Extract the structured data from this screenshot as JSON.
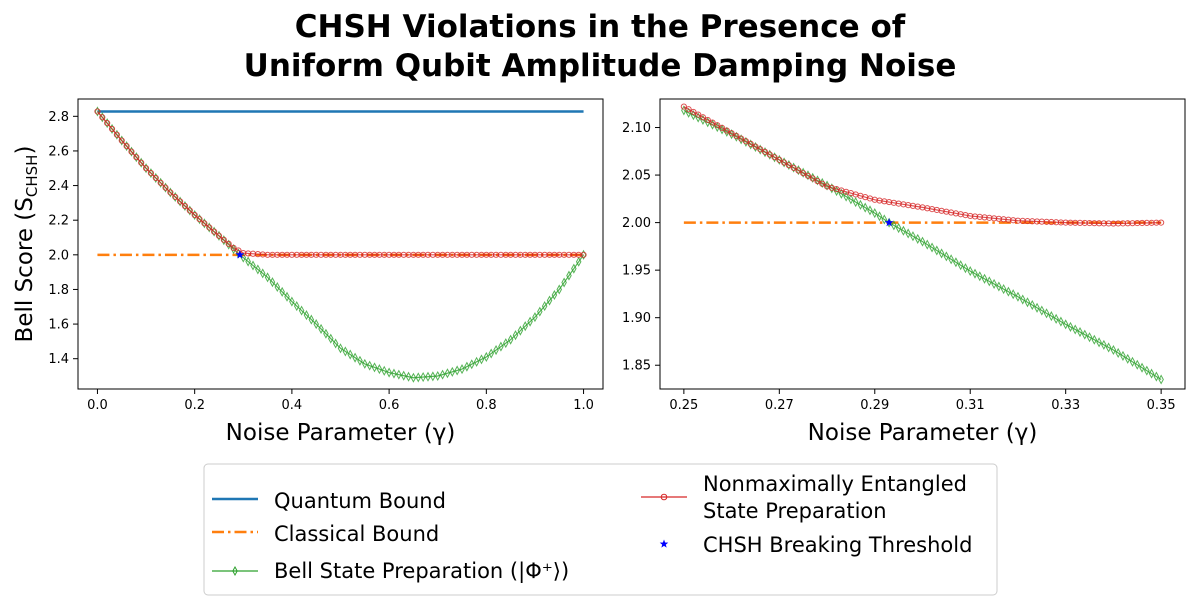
{
  "figure": {
    "title_lines": [
      "CHSH Violations in the Presence of",
      "Uniform Qubit Amplitude Damping Noise"
    ]
  },
  "legend": {
    "entries": [
      {
        "label": "Quantum Bound",
        "series": "quantum"
      },
      {
        "label": "Classical Bound",
        "series": "classical"
      },
      {
        "label": "Bell State Preparation (|Φ⁺⟩)",
        "series": "bell"
      },
      {
        "label_lines": [
          "Nonmaximally Entangled",
          "State Preparation"
        ],
        "series": "nonmax"
      },
      {
        "label": "CHSH Breaking Threshold",
        "series": "threshold"
      }
    ]
  },
  "colors": {
    "quantum": "#1f77b4",
    "classical": "#ff7f0e",
    "bell": "#2ca02c",
    "nonmax": "#d62728",
    "threshold": "#0000ff"
  },
  "chart_data": [
    {
      "type": "line",
      "panel": "left",
      "xlabel": "Noise Parameter (γ)",
      "ylabel": "Bell Score (S_CHSH)",
      "xlim": [
        -0.04,
        1.04
      ],
      "ylim": [
        1.225,
        2.9
      ],
      "xticks": [
        0.0,
        0.2,
        0.4,
        0.6,
        0.8,
        1.0
      ],
      "xtick_labels": [
        "0.0",
        "0.2",
        "0.4",
        "0.6",
        "0.8",
        "1.0"
      ],
      "yticks": [
        1.4,
        1.6,
        1.8,
        2.0,
        2.2,
        2.4,
        2.6,
        2.8
      ],
      "ytick_labels": [
        "1.4",
        "1.6",
        "1.8",
        "2.0",
        "2.2",
        "2.4",
        "2.6",
        "2.8"
      ],
      "series": [
        {
          "key": "quantum",
          "x": [
            0.0,
            1.0
          ],
          "y": [
            2.828,
            2.828
          ]
        },
        {
          "key": "classical",
          "x": [
            0.0,
            1.0
          ],
          "y": [
            2.0,
            2.0
          ]
        },
        {
          "key": "bell",
          "x": [
            0.0,
            0.05,
            0.1,
            0.15,
            0.2,
            0.25,
            0.293,
            0.35,
            0.4,
            0.45,
            0.5,
            0.55,
            0.6,
            0.65,
            0.7,
            0.75,
            0.8,
            0.85,
            0.9,
            0.95,
            1.0
          ],
          "y": [
            2.828,
            2.66,
            2.5,
            2.36,
            2.23,
            2.11,
            2.0,
            1.87,
            1.73,
            1.6,
            1.46,
            1.37,
            1.32,
            1.29,
            1.3,
            1.34,
            1.41,
            1.51,
            1.64,
            1.8,
            2.0
          ]
        },
        {
          "key": "nonmax",
          "x": [
            0.0,
            0.05,
            0.1,
            0.15,
            0.2,
            0.25,
            0.28,
            0.3,
            0.35,
            0.4,
            0.5,
            0.6,
            0.7,
            0.8,
            0.9,
            1.0
          ],
          "y": [
            2.828,
            2.66,
            2.5,
            2.36,
            2.23,
            2.11,
            2.04,
            2.01,
            2.0,
            2.0,
            2.0,
            2.0,
            2.0,
            2.0,
            2.0,
            2.0
          ]
        },
        {
          "key": "threshold",
          "x": [
            0.293
          ],
          "y": [
            2.0
          ]
        }
      ]
    },
    {
      "type": "line",
      "panel": "right",
      "xlabel": "Noise Parameter (γ)",
      "ylabel": "",
      "xlim": [
        0.245,
        0.355
      ],
      "ylim": [
        1.825,
        2.13
      ],
      "xticks": [
        0.25,
        0.27,
        0.29,
        0.31,
        0.33,
        0.35
      ],
      "xtick_labels": [
        "0.25",
        "0.27",
        "0.29",
        "0.31",
        "0.33",
        "0.35"
      ],
      "yticks": [
        1.85,
        1.9,
        1.95,
        2.0,
        2.05,
        2.1
      ],
      "ytick_labels": [
        "1.85",
        "1.90",
        "1.95",
        "2.00",
        "2.05",
        "2.10"
      ],
      "series": [
        {
          "key": "classical",
          "x": [
            0.25,
            0.35
          ],
          "y": [
            2.0,
            2.0
          ]
        },
        {
          "key": "bell",
          "x": [
            0.25,
            0.26,
            0.27,
            0.28,
            0.29,
            0.293,
            0.3,
            0.31,
            0.32,
            0.33,
            0.34,
            0.35
          ],
          "y": [
            2.118,
            2.093,
            2.066,
            2.039,
            2.01,
            2.0,
            1.98,
            1.949,
            1.922,
            1.893,
            1.866,
            1.835
          ]
        },
        {
          "key": "nonmax",
          "x": [
            0.25,
            0.26,
            0.27,
            0.28,
            0.29,
            0.3,
            0.31,
            0.32,
            0.33,
            0.34,
            0.35
          ],
          "y": [
            2.122,
            2.094,
            2.066,
            2.038,
            2.024,
            2.016,
            2.007,
            2.002,
            2.0,
            1.999,
            2.0
          ]
        },
        {
          "key": "threshold",
          "x": [
            0.293
          ],
          "y": [
            2.0
          ]
        }
      ]
    }
  ]
}
